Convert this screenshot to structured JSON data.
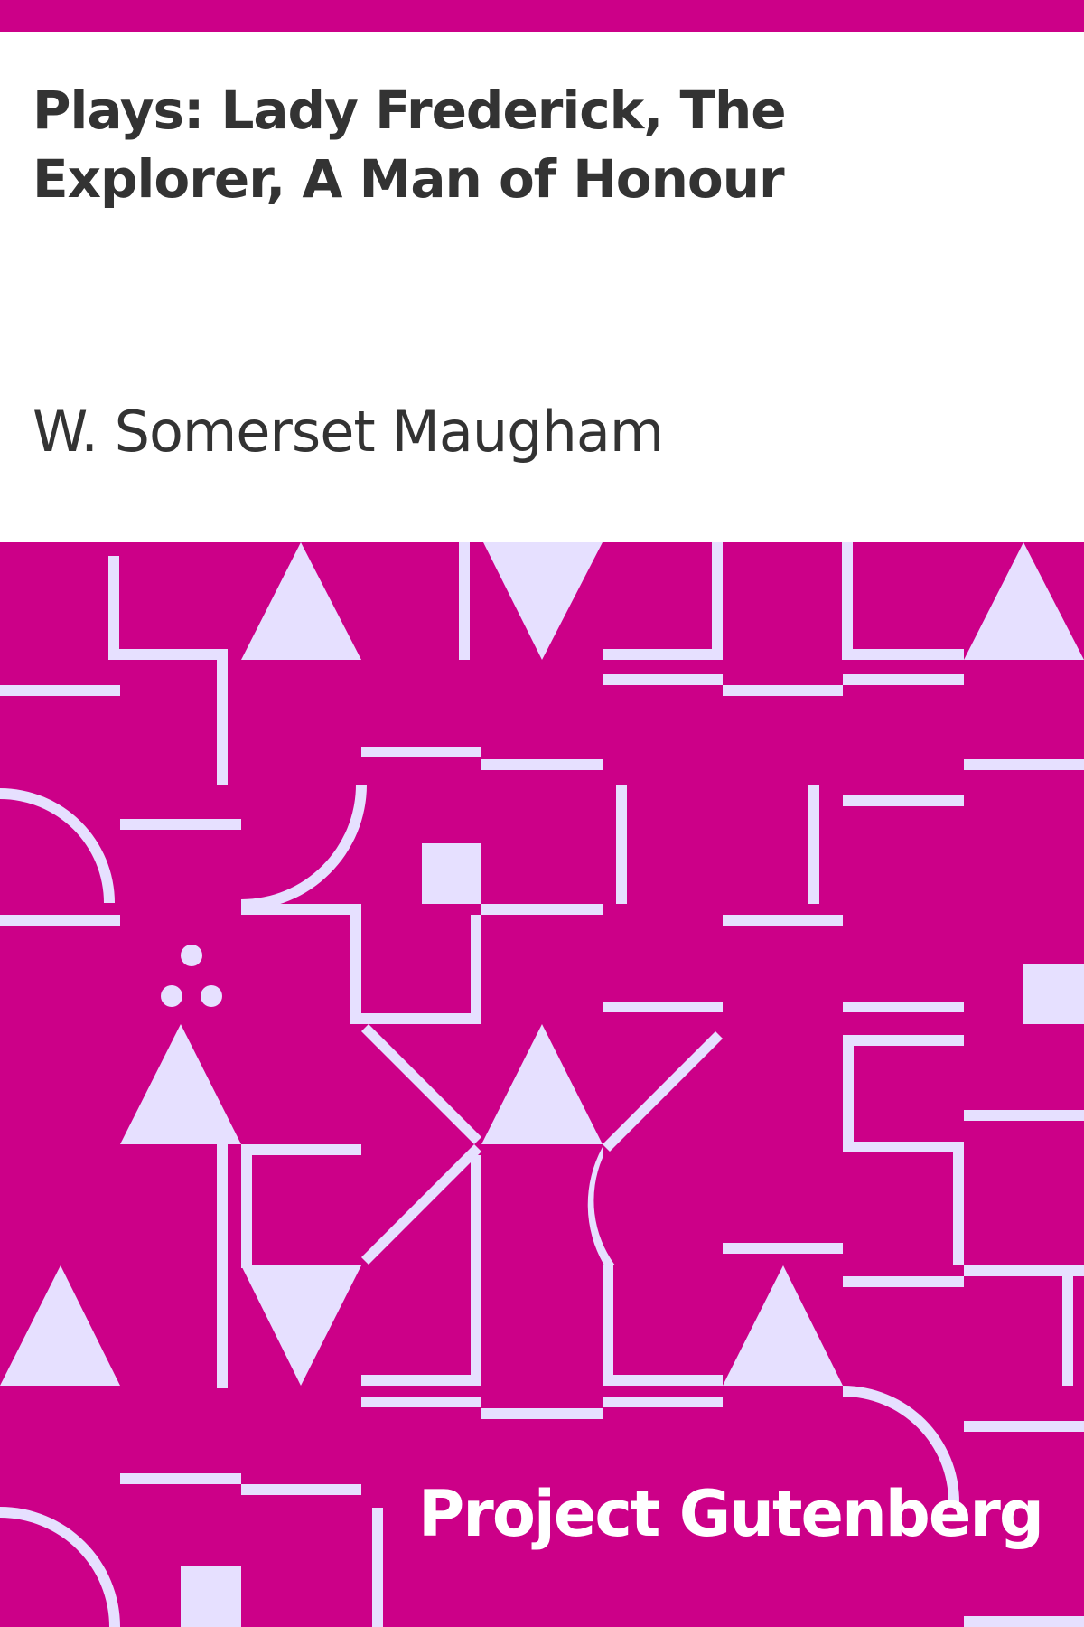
{
  "book": {
    "title": "Plays: Lady Frederick, The Explorer, A Man of Honour",
    "author": "W. Somerset Maugham",
    "publisher": "Project Gutenberg"
  },
  "colors": {
    "accent": "#cc0088",
    "pattern": "#e6e0ff",
    "background": "#ffffff",
    "text": "#333333",
    "publisher_text": "#ffffff"
  }
}
